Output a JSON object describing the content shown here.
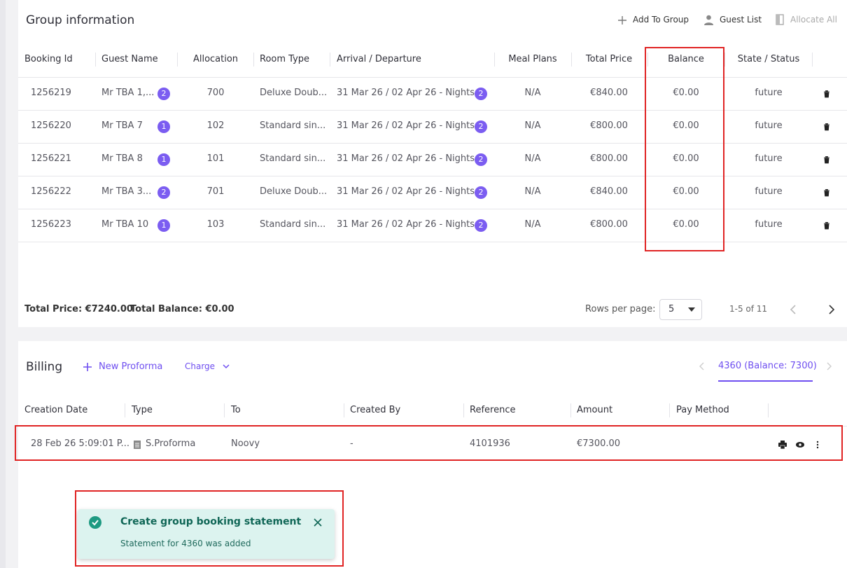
{
  "group": {
    "title": "Group information",
    "actions": [
      "Add To Group",
      "Guest List",
      "Allocate All"
    ],
    "columns": [
      "Booking Id",
      "Guest Name",
      "Allocation",
      "Room Type",
      "Arrival / Departure",
      "Meal Plans",
      "Total Price",
      "Balance",
      "State / Status"
    ],
    "rows": [
      {
        "booking_id": "1256219",
        "guest": "Mr TBA 1,...",
        "guests_count": "2",
        "allocation": "700",
        "room_type": "Deluxe Doub...",
        "dates": "31 Mar 26 / 02 Apr 26 - Nights:",
        "nights": "2",
        "meal_plans": "N/A",
        "total_price": "€840.00",
        "balance": "€0.00",
        "status": "future"
      },
      {
        "booking_id": "1256220",
        "guest": "Mr TBA 7",
        "guests_count": "1",
        "allocation": "102",
        "room_type": "Standard sin...",
        "dates": "31 Mar 26 / 02 Apr 26 - Nights:",
        "nights": "2",
        "meal_plans": "N/A",
        "total_price": "€800.00",
        "balance": "€0.00",
        "status": "future"
      },
      {
        "booking_id": "1256221",
        "guest": "Mr TBA 8",
        "guests_count": "1",
        "allocation": "101",
        "room_type": "Standard sin...",
        "dates": "31 Mar 26 / 02 Apr 26 - Nights:",
        "nights": "2",
        "meal_plans": "N/A",
        "total_price": "€800.00",
        "balance": "€0.00",
        "status": "future"
      },
      {
        "booking_id": "1256222",
        "guest": "Mr TBA 3...",
        "guests_count": "2",
        "allocation": "701",
        "room_type": "Deluxe Doub...",
        "dates": "31 Mar 26 / 02 Apr 26 - Nights:",
        "nights": "2",
        "meal_plans": "N/A",
        "total_price": "€840.00",
        "balance": "€0.00",
        "status": "future"
      },
      {
        "booking_id": "1256223",
        "guest": "Mr TBA 10",
        "guests_count": "1",
        "allocation": "103",
        "room_type": "Standard sin...",
        "dates": "31 Mar 26 / 02 Apr 26 - Nights:",
        "nights": "2",
        "meal_plans": "N/A",
        "total_price": "€800.00",
        "balance": "€0.00",
        "status": "future"
      }
    ],
    "footer": {
      "total_price": "Total Price: €7240.00",
      "total_balance": "Total Balance: €0.00",
      "rows_per_page_label": "Rows per page:",
      "rows_per_page": "5",
      "range": "1-5 of 11"
    }
  },
  "billing": {
    "title": "Billing",
    "new_proforma": "New Proforma",
    "charge": "Charge",
    "account": "4360 (Balance: 7300)",
    "columns": [
      "Creation Date",
      "Type",
      "To",
      "Created By",
      "Reference",
      "Amount",
      "Pay Method"
    ],
    "rows": [
      {
        "created": "28 Feb 26 5:09:01 P...",
        "type": "S.Proforma",
        "to": "Noovy",
        "created_by": "-",
        "reference": "4101936",
        "amount": "€7300.00"
      }
    ]
  },
  "toast": {
    "title": "Create group booking statement",
    "message": "Statement for 4360 was added"
  }
}
